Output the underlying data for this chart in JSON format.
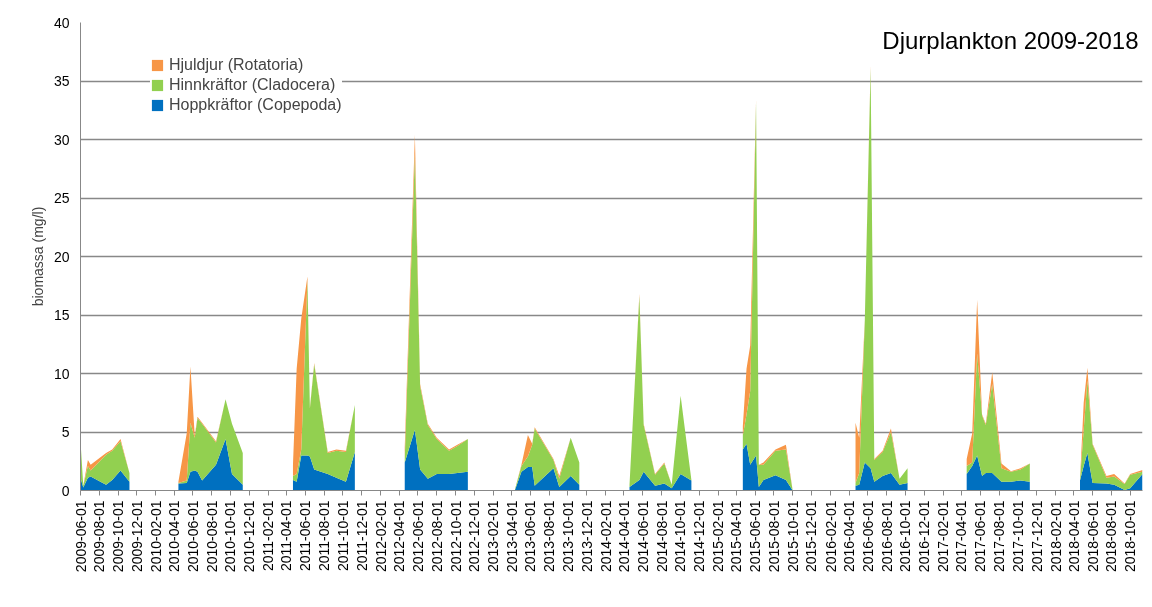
{
  "chart_data": {
    "type": "area",
    "stacked": true,
    "title": "Djurplankton 2009-2018",
    "ylabel": "biomassa (mg/l)",
    "x": [
      "2009-06-01",
      "2009-06-10",
      "2009-06-25",
      "2009-07-04",
      "2009-08-23",
      "2009-09-12",
      "2009-10-09",
      "2009-11-07",
      "2010-01-01",
      "2010-04-15",
      "2010-05-12",
      "2010-05-24",
      "2010-06-07",
      "2010-06-16",
      "2010-07-01",
      "2010-08-15",
      "2010-09-15",
      "2010-10-06",
      "2010-11-10",
      "2011-01-01",
      "2011-04-22",
      "2011-05-04",
      "2011-05-19",
      "2011-06-08",
      "2011-06-16",
      "2011-06-30",
      "2011-08-13",
      "2011-09-10",
      "2011-10-11",
      "2011-11-09",
      "2012-01-01",
      "2012-04-19",
      "2012-05-22",
      "2012-06-08",
      "2012-07-03",
      "2012-08-01",
      "2012-09-10",
      "2012-10-07",
      "2012-11-10",
      "2013-01-01",
      "2013-04-12",
      "2013-05-03",
      "2013-05-24",
      "2013-06-07",
      "2013-06-15",
      "2013-08-15",
      "2013-09-03",
      "2013-10-10",
      "2013-11-07",
      "2014-01-01",
      "2014-04-19",
      "2014-05-21",
      "2014-06-04",
      "2014-07-11",
      "2014-08-10",
      "2014-09-03",
      "2014-10-02",
      "2014-11-06",
      "2015-01-01",
      "2015-04-22",
      "2015-05-04",
      "2015-05-16",
      "2015-06-04",
      "2015-06-13",
      "2015-06-28",
      "2015-08-06",
      "2015-09-09",
      "2015-10-01",
      "2016-01-01",
      "2016-04-22",
      "2016-05-04",
      "2016-05-22",
      "2016-06-10",
      "2016-06-22",
      "2016-07-19",
      "2016-08-15",
      "2016-09-12",
      "2016-10-08",
      "2017-01-01",
      "2017-04-18",
      "2017-05-06",
      "2017-05-22",
      "2017-06-07",
      "2017-06-19",
      "2017-07-10",
      "2017-08-09",
      "2017-09-09",
      "2017-10-10",
      "2017-11-09",
      "2018-01-01",
      "2018-04-21",
      "2018-05-03",
      "2018-05-15",
      "2018-06-01",
      "2018-07-16",
      "2018-08-10",
      "2018-09-13",
      "2018-10-01",
      "2018-11-10"
    ],
    "series": [
      {
        "name": "Hoppkräftor (Copepoda)",
        "color": "#0070c0",
        "values": [
          1.1,
          0.25,
          1.1,
          1.2,
          0.5,
          0.9,
          1.7,
          0.75,
          null,
          0.6,
          0.65,
          1.6,
          1.7,
          1.6,
          0.85,
          2.2,
          4.4,
          1.4,
          0.5,
          null,
          0.9,
          0.75,
          3.0,
          3.0,
          2.9,
          1.8,
          1.4,
          1.1,
          0.75,
          3.3,
          null,
          2.4,
          5.2,
          1.8,
          1.0,
          1.4,
          1.4,
          1.5,
          1.6,
          null,
          0.05,
          1.6,
          2.0,
          2.0,
          0.4,
          1.9,
          0.3,
          1.25,
          0.5,
          null,
          0.3,
          0.9,
          1.6,
          0.4,
          0.6,
          0.2,
          1.4,
          0.85,
          null,
          3.5,
          4.0,
          2.2,
          3.0,
          0.3,
          0.9,
          1.3,
          0.9,
          0,
          null,
          0.4,
          0.5,
          2.4,
          1.9,
          0.75,
          1.25,
          1.5,
          0.5,
          0.65,
          null,
          1.4,
          2.1,
          3.0,
          1.25,
          1.5,
          1.5,
          0.75,
          0.75,
          0.85,
          0.75,
          null,
          0.85,
          2.1,
          3.2,
          0.65,
          0.6,
          0.5,
          0.05,
          0.2,
          1.4
        ]
      },
      {
        "name": "Hinnkräftor (Cladocera)",
        "color": "#92d050",
        "values": [
          3.1,
          0.15,
          1.0,
          0.5,
          2.55,
          2.5,
          2.5,
          0.75,
          null,
          0.05,
          0.2,
          4.2,
          2.8,
          4.6,
          4.85,
          1.9,
          3.4,
          4.3,
          2.7,
          null,
          0.35,
          0.65,
          0.5,
          15.0,
          4.1,
          9.0,
          1.8,
          2.3,
          2.55,
          4.0,
          null,
          0.3,
          23.6,
          7.1,
          4.6,
          3.0,
          2.0,
          2.3,
          2.8,
          null,
          0.05,
          0.5,
          0.9,
          1.9,
          4.9,
          0.7,
          0.7,
          3.25,
          1.9,
          null,
          0.2,
          15.7,
          4.0,
          0.95,
          1.7,
          0.3,
          6.7,
          0.05,
          null,
          1.2,
          2.5,
          6.3,
          30.2,
          1.9,
          1.3,
          2.1,
          2.6,
          0,
          null,
          0.25,
          1.0,
          12.0,
          34.2,
          1.85,
          2.05,
          3.5,
          0.5,
          1.25,
          null,
          0.7,
          0.3,
          8.7,
          5.15,
          4.1,
          7.6,
          1.15,
          0.85,
          0.95,
          1.55,
          null,
          0.05,
          3.1,
          6.2,
          3.25,
          0.5,
          0.7,
          0.5,
          1.15,
          0.2
        ]
      },
      {
        "name": "Hjuldjur (Rotatoria)",
        "color": "#f79646",
        "values": [
          0,
          0,
          0.5,
          0.5,
          0.15,
          0.1,
          0.2,
          0,
          null,
          0.1,
          4.05,
          4.8,
          0.2,
          0.1,
          0.1,
          0.1,
          0,
          0,
          0,
          null,
          0.95,
          9.0,
          11.2,
          0.3,
          0.1,
          0.1,
          0.1,
          0.1,
          0.1,
          0,
          null,
          1.0,
          1.6,
          0.2,
          0.1,
          0.1,
          0.1,
          0.1,
          0,
          null,
          0,
          0.1,
          1.85,
          0.1,
          0.1,
          0.1,
          0.25,
          0,
          0,
          null,
          0,
          0.2,
          0.1,
          0.05,
          0.1,
          0,
          0,
          0,
          null,
          0.8,
          3.9,
          3.9,
          0.2,
          0,
          0.2,
          0.1,
          0.4,
          0,
          null,
          5.15,
          3.0,
          0.1,
          0.2,
          0.1,
          0.1,
          0.3,
          0,
          0,
          null,
          0.6,
          2.5,
          4.6,
          0.1,
          0.1,
          1.0,
          0.4,
          0.05,
          0.1,
          0,
          null,
          0,
          2.3,
          1.1,
          0.1,
          0.15,
          0.2,
          0.05,
          0.05,
          0.15
        ]
      }
    ],
    "xlim": [
      "2009-06-01",
      "2018-11-10"
    ],
    "xticks": [
      "2009-06-01",
      "2009-08-01",
      "2009-10-01",
      "2009-12-01",
      "2010-02-01",
      "2010-04-01",
      "2010-06-01",
      "2010-08-01",
      "2010-10-01",
      "2010-12-01",
      "2011-02-01",
      "2011-04-01",
      "2011-06-01",
      "2011-08-01",
      "2011-10-01",
      "2011-12-01",
      "2012-02-01",
      "2012-04-01",
      "2012-06-01",
      "2012-08-01",
      "2012-10-01",
      "2012-12-01",
      "2013-02-01",
      "2013-04-01",
      "2013-06-01",
      "2013-08-01",
      "2013-10-01",
      "2013-12-01",
      "2014-02-01",
      "2014-04-01",
      "2014-06-01",
      "2014-08-01",
      "2014-10-01",
      "2014-12-01",
      "2015-02-01",
      "2015-04-01",
      "2015-06-01",
      "2015-08-01",
      "2015-10-01",
      "2015-12-01",
      "2016-02-01",
      "2016-04-01",
      "2016-06-01",
      "2016-08-01",
      "2016-10-01",
      "2016-12-01",
      "2017-02-01",
      "2017-04-01",
      "2017-06-01",
      "2017-08-01",
      "2017-10-01",
      "2017-12-01",
      "2018-02-01",
      "2018-04-01",
      "2018-06-01",
      "2018-08-01",
      "2018-10-01"
    ],
    "ylim": [
      0,
      40
    ],
    "yticks": [
      0,
      5,
      10,
      15,
      20,
      25,
      30,
      35,
      40
    ],
    "grid": "y",
    "legend": "top left"
  }
}
